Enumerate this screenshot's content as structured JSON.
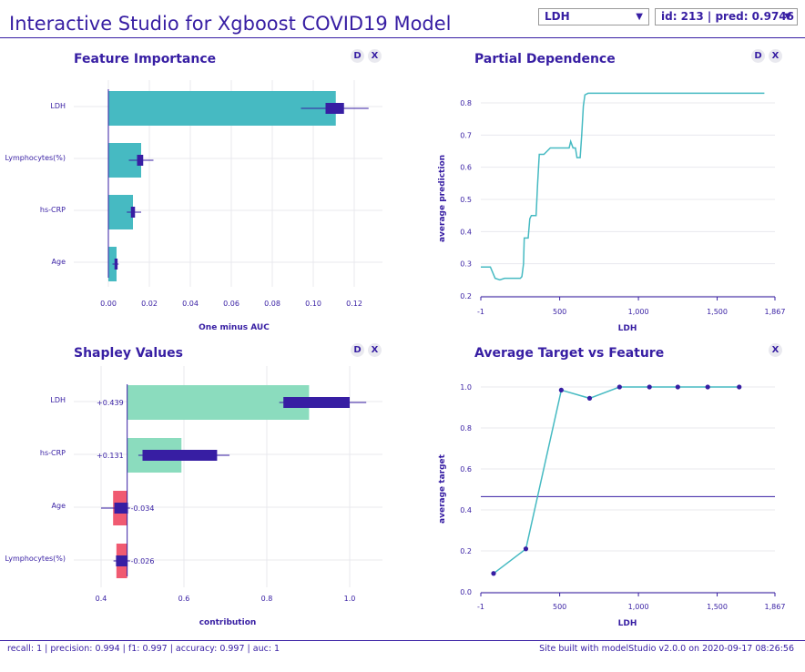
{
  "header": {
    "title": "Interactive Studio for Xgboost COVID19 Model",
    "variable_select": "LDH",
    "observation_select": "id: 213 | pred: 0.9746",
    "dropdown_arrow": "▼"
  },
  "panels": {
    "feature_importance": {
      "title": "Feature Importance",
      "btn_d": "D",
      "btn_x": "X"
    },
    "partial_dependence": {
      "title": "Partial Dependence",
      "btn_d": "D",
      "btn_x": "X"
    },
    "shapley_values": {
      "title": "Shapley Values",
      "btn_d": "D",
      "btn_x": "X"
    },
    "average_target": {
      "title": "Average Target vs Feature",
      "btn_x": "X"
    }
  },
  "colors": {
    "accent": "#371ea3",
    "importance_bar": "#46bac2",
    "shap_positive": "#8bdcbe",
    "shap_negative": "#f05a71",
    "boxplot": "#371ea3",
    "grid": "#e8e8ee"
  },
  "chart_data": [
    {
      "type": "bar",
      "name": "feature_importance",
      "categories": [
        "LDH",
        "Lymphocytes(%)",
        "hs-CRP",
        "Age"
      ],
      "values": [
        0.111,
        0.016,
        0.012,
        0.004
      ],
      "boxplots": [
        {
          "whisker_low": 0.094,
          "q1": 0.106,
          "q3": 0.115,
          "whisker_high": 0.127
        },
        {
          "whisker_low": 0.01,
          "q1": 0.014,
          "q3": 0.017,
          "whisker_high": 0.022
        },
        {
          "whisker_low": 0.009,
          "q1": 0.011,
          "q3": 0.013,
          "whisker_high": 0.016
        },
        {
          "whisker_low": 0.002,
          "q1": 0.003,
          "q3": 0.0045,
          "whisker_high": 0.005
        }
      ],
      "xlabel": "One minus AUC",
      "xlim": [
        0,
        0.13
      ],
      "xticks": [
        0,
        0.02,
        0.04,
        0.06,
        0.08,
        0.1,
        0.12
      ],
      "xtick_labels": [
        "0.00",
        "0.02",
        "0.04",
        "0.06",
        "0.08",
        "0.10",
        "0.12"
      ]
    },
    {
      "type": "line",
      "name": "partial_dependence",
      "x": [
        -1,
        30,
        60,
        90,
        120,
        150,
        180,
        210,
        230,
        250,
        260,
        270,
        275,
        285,
        300,
        310,
        320,
        330,
        340,
        350,
        360,
        370,
        390,
        400,
        420,
        440,
        460,
        480,
        500,
        530,
        560,
        570,
        585,
        600,
        610,
        630,
        640,
        650,
        660,
        680,
        700,
        800,
        1000,
        1200,
        1500,
        1800
      ],
      "y": [
        0.29,
        0.29,
        0.29,
        0.255,
        0.25,
        0.255,
        0.255,
        0.255,
        0.255,
        0.255,
        0.26,
        0.3,
        0.38,
        0.38,
        0.38,
        0.44,
        0.45,
        0.45,
        0.45,
        0.45,
        0.55,
        0.64,
        0.64,
        0.64,
        0.65,
        0.66,
        0.66,
        0.66,
        0.66,
        0.66,
        0.66,
        0.68,
        0.66,
        0.66,
        0.63,
        0.63,
        0.7,
        0.79,
        0.825,
        0.83,
        0.83,
        0.83,
        0.83,
        0.83,
        0.83,
        0.83
      ],
      "xlabel": "LDH",
      "ylabel": "average prediction",
      "xlim": [
        -1,
        1867
      ],
      "ylim": [
        0.2,
        0.85
      ],
      "xticks": [
        -1,
        500,
        1000,
        1500,
        1867
      ],
      "xtick_labels": [
        "-1",
        "500",
        "1,000",
        "1,500",
        "1,867"
      ],
      "yticks": [
        0.2,
        0.3,
        0.4,
        0.5,
        0.6,
        0.7,
        0.8
      ],
      "ytick_labels": [
        "0.2",
        "0.3",
        "0.4",
        "0.5",
        "0.6",
        "0.7",
        "0.8"
      ]
    },
    {
      "type": "bar",
      "name": "shapley_values",
      "categories": [
        "LDH",
        "hs-CRP",
        "Age",
        "Lymphocytes(%)"
      ],
      "baseline": 0.463,
      "values": [
        0.439,
        0.131,
        -0.034,
        -0.026
      ],
      "value_labels": [
        "+0.439",
        "+0.131",
        "-0.034",
        "-0.026"
      ],
      "boxplots": [
        {
          "whisker_low": 0.83,
          "q1": 0.84,
          "q3": 1.0,
          "whisker_high": 1.04
        },
        {
          "whisker_low": 0.49,
          "q1": 0.5,
          "q3": 0.68,
          "whisker_high": 0.71
        },
        {
          "whisker_low": 0.4,
          "q1": 0.432,
          "q3": 0.465,
          "whisker_high": 0.47
        },
        {
          "whisker_low": 0.43,
          "q1": 0.436,
          "q3": 0.464,
          "whisker_high": 0.47
        }
      ],
      "xlabel": "contribution",
      "xlim": [
        0.33,
        1.1
      ],
      "xticks": [
        0.4,
        0.6,
        0.8,
        1.0
      ],
      "xtick_labels": [
        "0.4",
        "0.6",
        "0.8",
        "1.0"
      ]
    },
    {
      "type": "line",
      "name": "average_target_vs_feature",
      "x": [
        80,
        285,
        510,
        690,
        880,
        1070,
        1250,
        1440,
        1640
      ],
      "y": [
        0.09,
        0.21,
        0.985,
        0.945,
        1.0,
        1.0,
        1.0,
        1.0,
        1.0
      ],
      "mean_line": 0.465,
      "xlabel": "LDH",
      "ylabel": "average target",
      "xlim": [
        -1,
        1867
      ],
      "ylim": [
        0,
        1.1
      ],
      "xticks": [
        -1,
        500,
        1000,
        1500,
        1867
      ],
      "xtick_labels": [
        "-1",
        "500",
        "1,000",
        "1,500",
        "1,867"
      ],
      "yticks": [
        0,
        0.2,
        0.4,
        0.6,
        0.8,
        1.0
      ],
      "ytick_labels": [
        "0.0",
        "0.2",
        "0.4",
        "0.6",
        "0.8",
        "1.0"
      ]
    }
  ],
  "footer": {
    "metrics": "recall: 1 | precision: 0.994 | f1: 0.997 | accuracy: 0.997 | auc: 1",
    "credit": "Site built with modelStudio v2.0.0 on 2020-09-17 08:26:56"
  }
}
